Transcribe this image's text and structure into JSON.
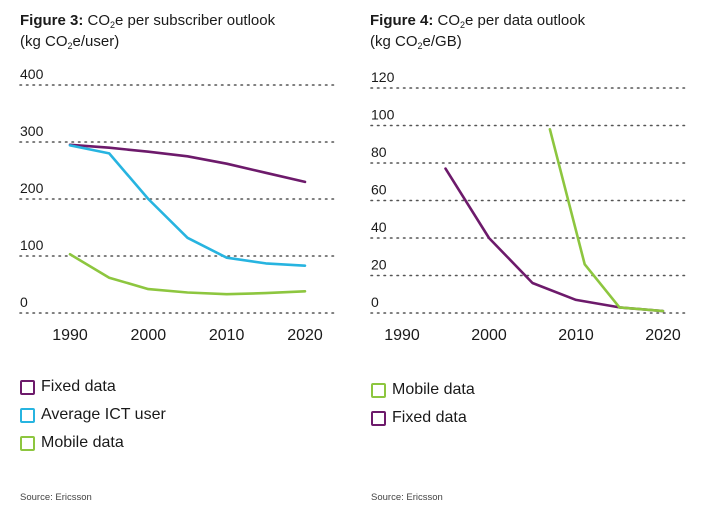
{
  "figures": [
    {
      "title": {
        "label": "Figure 3:",
        "pre": "CO",
        "sub": "2",
        "post": "e per subscriber outlook"
      },
      "unit": {
        "pre": "(kg CO",
        "sub": "2",
        "post": "e/user)"
      },
      "source": "Source: Ericsson"
    },
    {
      "title": {
        "label": "Figure 4:",
        "pre": "CO",
        "sub": "2",
        "post": "e per data outlook"
      },
      "unit": {
        "pre": "(kg CO",
        "sub": "2",
        "post": "e/GB)"
      },
      "source": "Source: Ericsson"
    }
  ],
  "chart_data": [
    {
      "type": "line",
      "title": "Figure 3: CO2e per subscriber outlook",
      "ylabel": "kg CO2e/user",
      "ylim": [
        0,
        400
      ],
      "yticks": [
        "0",
        "100",
        "200",
        "300",
        "400"
      ],
      "xlim": [
        1990,
        2020
      ],
      "xticks": [
        "1990",
        "2000",
        "2010",
        "2020"
      ],
      "grid": "dotted",
      "series": [
        {
          "name": "Fixed data",
          "color": "#6d1a6b",
          "x": [
            1990,
            1995,
            2000,
            2005,
            2010,
            2015,
            2020
          ],
          "values": [
            295,
            290,
            283,
            275,
            262,
            246,
            230
          ]
        },
        {
          "name": "Average ICT user",
          "color": "#27b4e0",
          "x": [
            1990,
            1995,
            2000,
            2005,
            2010,
            2015,
            2020
          ],
          "values": [
            294,
            280,
            200,
            132,
            97,
            87,
            83
          ]
        },
        {
          "name": "Mobile data",
          "color": "#8dc63f",
          "x": [
            1990,
            1995,
            2000,
            2005,
            2010,
            2015,
            2020
          ],
          "values": [
            103,
            62,
            42,
            36,
            33,
            35,
            38
          ]
        }
      ],
      "legend": [
        "Fixed data",
        "Average ICT user",
        "Mobile data"
      ]
    },
    {
      "type": "line",
      "title": "Figure 4: CO2e per data outlook",
      "ylabel": "kg CO2e/GB",
      "ylim": [
        0,
        120
      ],
      "yticks": [
        "0",
        "20",
        "40",
        "60",
        "80",
        "100",
        "120"
      ],
      "xlim": [
        1990,
        2020
      ],
      "xticks": [
        "1990",
        "2000",
        "2010",
        "2020"
      ],
      "grid": "dotted",
      "series": [
        {
          "name": "Fixed data",
          "color": "#6d1a6b",
          "x": [
            1995,
            2000,
            2005,
            2010,
            2015,
            2020
          ],
          "values": [
            77,
            40,
            16,
            7,
            3,
            1
          ]
        },
        {
          "name": "Mobile data",
          "color": "#8dc63f",
          "x": [
            2007,
            2011,
            2015,
            2020
          ],
          "values": [
            98,
            26,
            3,
            1
          ]
        }
      ],
      "legend": [
        "Mobile data",
        "Fixed data"
      ]
    }
  ]
}
